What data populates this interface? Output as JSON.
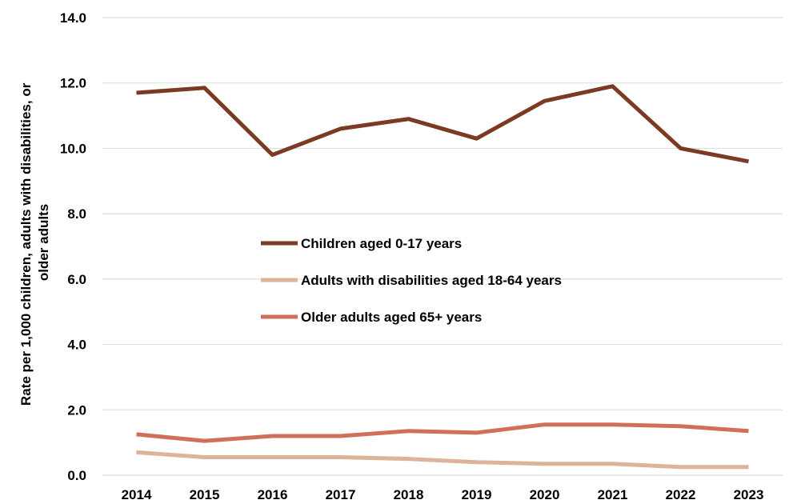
{
  "chart_data": {
    "type": "line",
    "title": "",
    "xlabel": "",
    "ylabel_lines": [
      "Rate per 1,000 children, adults with disabilities, or",
      "older adults"
    ],
    "ylim": [
      0,
      14
    ],
    "yticks": [
      "0.0",
      "2.0",
      "4.0",
      "6.0",
      "8.0",
      "10.0",
      "12.0",
      "14.0"
    ],
    "ytick_values": [
      0,
      2,
      4,
      6,
      8,
      10,
      12,
      14
    ],
    "categories": [
      "2014",
      "2015",
      "2016",
      "2017",
      "2018",
      "2019",
      "2020",
      "2021",
      "2022",
      "2023"
    ],
    "grid": "horizontal",
    "legend_position": "center",
    "series": [
      {
        "name": "Children aged 0-17 years",
        "color": "#7B3A22",
        "values": [
          11.7,
          11.85,
          9.8,
          10.6,
          10.9,
          10.3,
          11.45,
          11.9,
          10.0,
          9.6
        ]
      },
      {
        "name": "Adults with disabilities aged 18-64 years",
        "color": "#DDB49A",
        "values": [
          0.7,
          0.55,
          0.55,
          0.55,
          0.5,
          0.4,
          0.35,
          0.35,
          0.25,
          0.25
        ]
      },
      {
        "name": "Older adults aged 65+ years",
        "color": "#D0705A",
        "values": [
          1.25,
          1.05,
          1.2,
          1.2,
          1.35,
          1.3,
          1.55,
          1.55,
          1.5,
          1.35
        ]
      }
    ]
  }
}
